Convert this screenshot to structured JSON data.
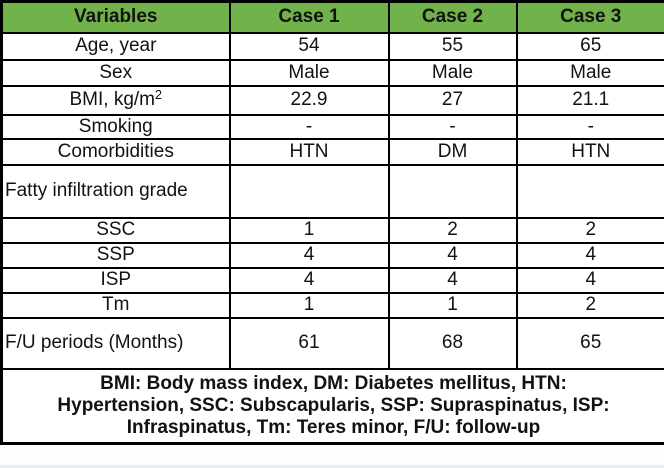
{
  "table": {
    "header": {
      "columns": [
        "Variables",
        "Case 1",
        "Case 2",
        "Case 3"
      ]
    },
    "rows": [
      {
        "label": "Age, year",
        "values": [
          "54",
          "55",
          "65"
        ]
      },
      {
        "label": "Sex",
        "values": [
          "Male",
          "Male",
          "Male"
        ]
      },
      {
        "label": "BMI, kg/m",
        "label_sup": "2",
        "values": [
          "22.9",
          "27",
          "21.1"
        ]
      },
      {
        "label": "Smoking",
        "values": [
          "-",
          "-",
          "-"
        ]
      },
      {
        "label": "Comorbidities",
        "values": [
          "HTN",
          "DM",
          "HTN"
        ]
      },
      {
        "label": "Fatty infiltration grade",
        "values": [
          "",
          "",
          ""
        ]
      },
      {
        "label": "SSC",
        "values": [
          "1",
          "2",
          "2"
        ]
      },
      {
        "label": "SSP",
        "values": [
          "4",
          "4",
          "4"
        ]
      },
      {
        "label": "ISP",
        "values": [
          "4",
          "4",
          "4"
        ]
      },
      {
        "label": "Tm",
        "values": [
          "1",
          "1",
          "2"
        ]
      },
      {
        "label": "F/U periods (Months)",
        "values": [
          "61",
          "68",
          "65"
        ]
      }
    ],
    "footnote_lines": [
      "BMI: Body mass index, DM: Diabetes mellitus, HTN:",
      "Hypertension, SSC: Subscapularis, SSP: Supraspinatus, ISP:",
      "Infraspinatus, Tm: Teres minor, F/U: follow-up"
    ],
    "colors": {
      "header_bg": "#71B24B",
      "border": "#000000",
      "text": "#121212"
    }
  }
}
